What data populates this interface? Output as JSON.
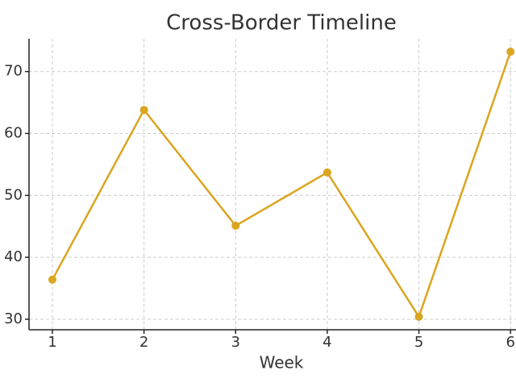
{
  "chart_data": {
    "type": "line",
    "title": "Cross-Border Timeline",
    "x_label": "Week",
    "x": [
      1,
      2,
      3,
      4,
      5,
      6
    ],
    "series": [
      {
        "color": "#daa520",
        "values": [
          36.4,
          63.8,
          45.1,
          53.7,
          30.4,
          73.2
        ]
      }
    ],
    "xlim": [
      0.745,
      6.06
    ],
    "xticks": [
      1,
      2,
      3,
      4,
      5,
      6
    ],
    "ylim": [
      28.3,
      75.3
    ],
    "yticks": [
      30,
      40,
      50,
      60,
      70
    ],
    "grid": true
  }
}
